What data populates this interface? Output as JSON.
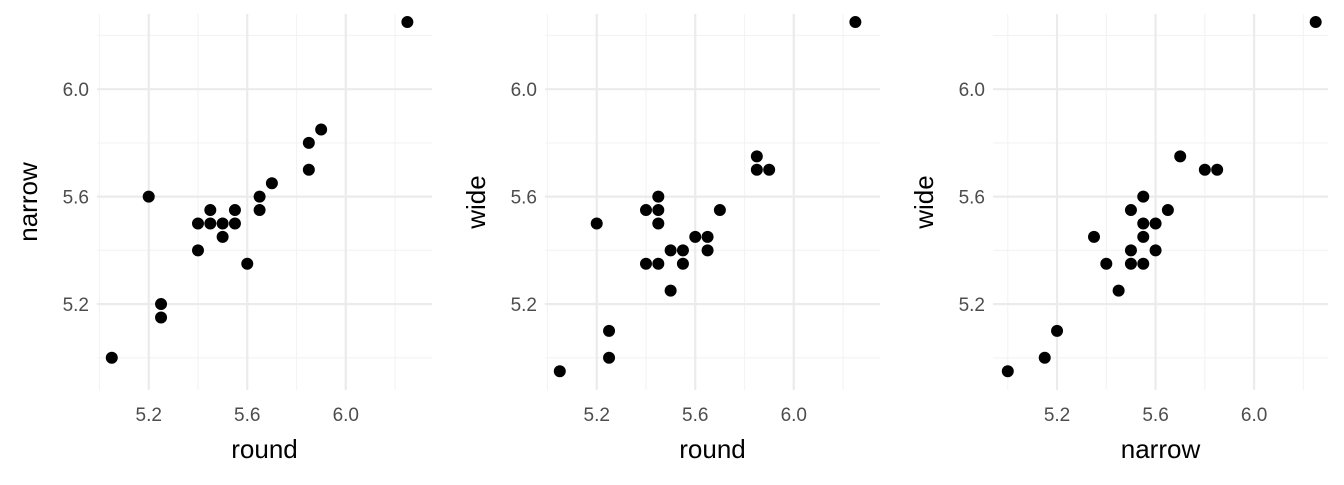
{
  "chart_data": [
    {
      "type": "scatter",
      "xlabel": "round",
      "ylabel": "narrow",
      "xlim": [
        4.99,
        6.35
      ],
      "ylim": [
        4.88,
        6.28
      ],
      "xticks": [
        5.2,
        5.6,
        6.0
      ],
      "yticks": [
        5.2,
        5.6,
        6.0
      ],
      "xtick_labels": [
        "5.2",
        "5.6",
        "6.0"
      ],
      "ytick_labels": [
        "5.2",
        "5.6",
        "6.0"
      ],
      "grid": true,
      "points": [
        {
          "x": 5.05,
          "y": 5.0
        },
        {
          "x": 5.2,
          "y": 5.6
        },
        {
          "x": 5.25,
          "y": 5.2
        },
        {
          "x": 5.25,
          "y": 5.15
        },
        {
          "x": 5.4,
          "y": 5.5
        },
        {
          "x": 5.4,
          "y": 5.4
        },
        {
          "x": 5.45,
          "y": 5.55
        },
        {
          "x": 5.45,
          "y": 5.5
        },
        {
          "x": 5.5,
          "y": 5.5
        },
        {
          "x": 5.5,
          "y": 5.45
        },
        {
          "x": 5.55,
          "y": 5.55
        },
        {
          "x": 5.55,
          "y": 5.5
        },
        {
          "x": 5.6,
          "y": 5.35
        },
        {
          "x": 5.65,
          "y": 5.6
        },
        {
          "x": 5.65,
          "y": 5.55
        },
        {
          "x": 5.7,
          "y": 5.65
        },
        {
          "x": 5.85,
          "y": 5.8
        },
        {
          "x": 5.85,
          "y": 5.7
        },
        {
          "x": 5.9,
          "y": 5.85
        },
        {
          "x": 6.25,
          "y": 6.25
        }
      ]
    },
    {
      "type": "scatter",
      "xlabel": "round",
      "ylabel": "wide",
      "xlim": [
        4.99,
        6.35
      ],
      "ylim": [
        4.88,
        6.28
      ],
      "xticks": [
        5.2,
        5.6,
        6.0
      ],
      "yticks": [
        5.2,
        5.6,
        6.0
      ],
      "xtick_labels": [
        "5.2",
        "5.6",
        "6.0"
      ],
      "ytick_labels": [
        "5.2",
        "5.6",
        "6.0"
      ],
      "grid": true,
      "points": [
        {
          "x": 5.05,
          "y": 4.95
        },
        {
          "x": 5.2,
          "y": 5.5
        },
        {
          "x": 5.25,
          "y": 5.1
        },
        {
          "x": 5.25,
          "y": 5.0
        },
        {
          "x": 5.4,
          "y": 5.55
        },
        {
          "x": 5.4,
          "y": 5.35
        },
        {
          "x": 5.45,
          "y": 5.6
        },
        {
          "x": 5.45,
          "y": 5.55
        },
        {
          "x": 5.45,
          "y": 5.5
        },
        {
          "x": 5.45,
          "y": 5.35
        },
        {
          "x": 5.5,
          "y": 5.4
        },
        {
          "x": 5.5,
          "y": 5.25
        },
        {
          "x": 5.55,
          "y": 5.4
        },
        {
          "x": 5.55,
          "y": 5.35
        },
        {
          "x": 5.6,
          "y": 5.45
        },
        {
          "x": 5.65,
          "y": 5.45
        },
        {
          "x": 5.65,
          "y": 5.4
        },
        {
          "x": 5.7,
          "y": 5.55
        },
        {
          "x": 5.85,
          "y": 5.75
        },
        {
          "x": 5.85,
          "y": 5.7
        },
        {
          "x": 5.9,
          "y": 5.7
        },
        {
          "x": 6.25,
          "y": 6.25
        }
      ]
    },
    {
      "type": "scatter",
      "xlabel": "narrow",
      "ylabel": "wide",
      "xlim": [
        4.94,
        6.3
      ],
      "ylim": [
        4.88,
        6.28
      ],
      "xticks": [
        5.2,
        5.6,
        6.0
      ],
      "yticks": [
        5.2,
        5.6,
        6.0
      ],
      "xtick_labels": [
        "5.2",
        "5.6",
        "6.0"
      ],
      "ytick_labels": [
        "5.2",
        "5.6",
        "6.0"
      ],
      "grid": true,
      "points": [
        {
          "x": 5.0,
          "y": 4.95
        },
        {
          "x": 5.15,
          "y": 5.0
        },
        {
          "x": 5.2,
          "y": 5.1
        },
        {
          "x": 5.35,
          "y": 5.45
        },
        {
          "x": 5.4,
          "y": 5.35
        },
        {
          "x": 5.45,
          "y": 5.25
        },
        {
          "x": 5.5,
          "y": 5.55
        },
        {
          "x": 5.5,
          "y": 5.4
        },
        {
          "x": 5.5,
          "y": 5.35
        },
        {
          "x": 5.55,
          "y": 5.6
        },
        {
          "x": 5.55,
          "y": 5.5
        },
        {
          "x": 5.55,
          "y": 5.45
        },
        {
          "x": 5.55,
          "y": 5.35
        },
        {
          "x": 5.6,
          "y": 5.5
        },
        {
          "x": 5.6,
          "y": 5.4
        },
        {
          "x": 5.65,
          "y": 5.55
        },
        {
          "x": 5.7,
          "y": 5.75
        },
        {
          "x": 5.8,
          "y": 5.7
        },
        {
          "x": 5.85,
          "y": 5.7
        },
        {
          "x": 6.25,
          "y": 6.25
        }
      ]
    }
  ]
}
